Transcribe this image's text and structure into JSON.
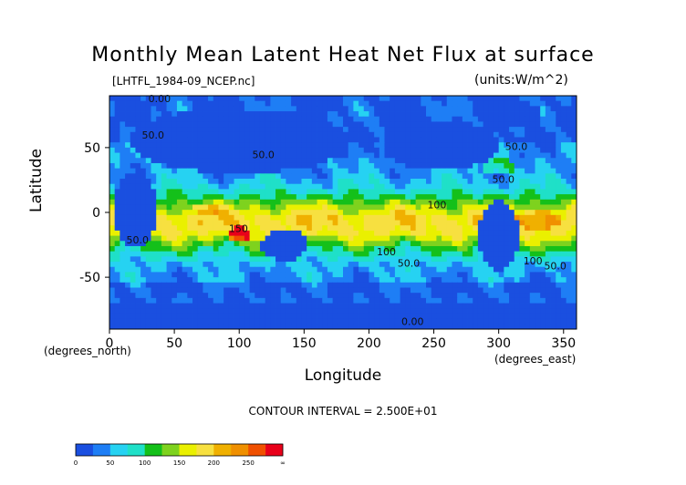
{
  "title": "Monthly Mean Latent Heat Net Flux at surface",
  "file_label": "[LHTFL_1984-09_NCEP.nc]",
  "units": "(units:W/m^2)",
  "contour_text": "CONTOUR INTERVAL = 2.500E+01",
  "chart_data": {
    "type": "heatmap",
    "title": "Monthly Mean Latent Heat Net Flux at surface",
    "xlabel": "Longitude",
    "ylabel": "Latitude",
    "x_unit": "(degrees_east)",
    "y_unit": "(degrees_north)",
    "xlim": [
      0,
      360
    ],
    "ylim": [
      -90,
      90
    ],
    "x_ticks": [
      0,
      50,
      100,
      150,
      200,
      250,
      300,
      350
    ],
    "y_ticks": [
      -50,
      0,
      50
    ],
    "contour_interval": 25,
    "contour_labels": [
      {
        "text": "0.00",
        "lon": 30,
        "lat": 85
      },
      {
        "text": "50.0",
        "lon": 25,
        "lat": 57
      },
      {
        "text": "50.0",
        "lon": 110,
        "lat": 42
      },
      {
        "text": "50.0",
        "lon": 305,
        "lat": 48
      },
      {
        "text": "50.0",
        "lon": 295,
        "lat": 23
      },
      {
        "text": "100",
        "lon": 245,
        "lat": 3
      },
      {
        "text": "100",
        "lon": 206,
        "lat": -33
      },
      {
        "text": "50.0",
        "lon": 222,
        "lat": -42
      },
      {
        "text": "100",
        "lon": 319,
        "lat": -40
      },
      {
        "text": "50.0",
        "lon": 335,
        "lat": -44
      },
      {
        "text": "150",
        "lon": 92,
        "lat": -15
      },
      {
        "text": "50.0",
        "lon": 13,
        "lat": -24
      },
      {
        "text": "0.00",
        "lon": 225,
        "lat": -87
      }
    ],
    "colorbar": {
      "ticks": [
        "0",
        "50",
        "100",
        "150",
        "200",
        "250",
        "∞"
      ],
      "bands": [
        {
          "from": 0,
          "to": 25,
          "color": "#1a4fe0"
        },
        {
          "from": 25,
          "to": 50,
          "color": "#1e7ef5"
        },
        {
          "from": 50,
          "to": 75,
          "color": "#26d2f2"
        },
        {
          "from": 75,
          "to": 100,
          "color": "#1fe0c8"
        },
        {
          "from": 100,
          "to": 125,
          "color": "#14c01a"
        },
        {
          "from": 125,
          "to": 150,
          "color": "#7ed21e"
        },
        {
          "from": 150,
          "to": 175,
          "color": "#eaf000"
        },
        {
          "from": 175,
          "to": 200,
          "color": "#f7e040"
        },
        {
          "from": 200,
          "to": 225,
          "color": "#f0b000"
        },
        {
          "from": 225,
          "to": 250,
          "color": "#f09000"
        },
        {
          "from": 250,
          "to": 275,
          "color": "#f05000"
        },
        {
          "from": 275,
          "to": null,
          "color": "#e8001a"
        }
      ]
    }
  }
}
